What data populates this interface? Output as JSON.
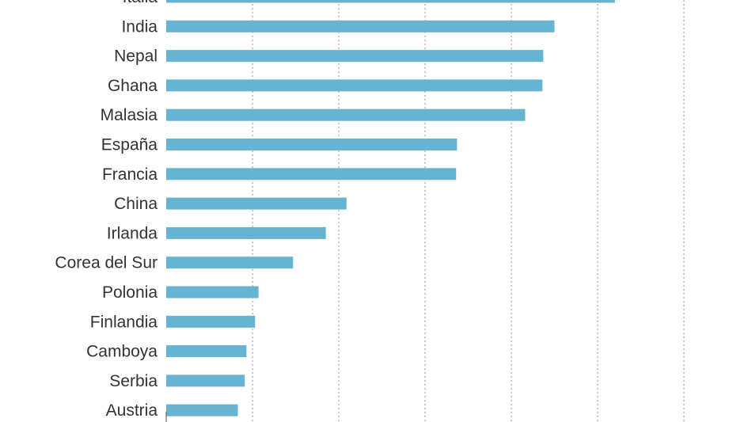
{
  "chart_data": {
    "type": "bar",
    "orientation": "horizontal",
    "categories": [
      "Italia",
      "India",
      "Nepal",
      "Ghana",
      "Malasia",
      "España",
      "Francia",
      "China",
      "Irlanda",
      "Corea del Sur",
      "Polonia",
      "Finlandia",
      "Camboya",
      "Serbia",
      "Austria"
    ],
    "values": [
      5.2,
      4.5,
      4.37,
      4.36,
      4.16,
      3.37,
      3.36,
      2.09,
      1.85,
      1.47,
      1.07,
      1.03,
      0.93,
      0.91,
      0.83
    ],
    "title": "",
    "xlabel": "",
    "ylabel": "",
    "xlim": [
      0,
      6
    ],
    "grid": true,
    "bar_color": "#66b4d3"
  }
}
